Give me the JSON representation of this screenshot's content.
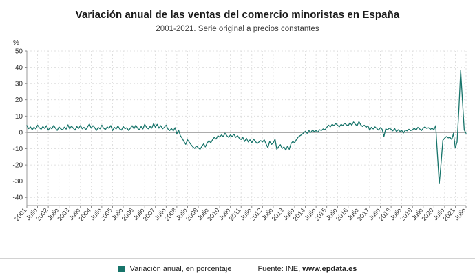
{
  "header": {
    "title": "Variación anual de las ventas del comercio minoristas en España",
    "subtitle": "2001-2021. Serie original a precios constantes"
  },
  "legend": {
    "label": "Variación anual, en porcentaje",
    "source_prefix": "Fuente: INE,",
    "source_site": "www.epdata.es"
  },
  "chart_data": {
    "type": "line",
    "title": "Variación anual de las ventas del comercio minoristas en España",
    "subtitle": "2001-2021. Serie original a precios constantes",
    "ylabel": "%",
    "xlabel": "",
    "ylim": [
      -45,
      50
    ],
    "yticks": [
      50,
      40,
      30,
      20,
      10,
      0,
      -10,
      -20,
      -30,
      -40
    ],
    "grid": true,
    "legend_position": "bottom",
    "line_color": "#17746a",
    "series_name": "Variación anual, en porcentaje",
    "x_start": "2001-01",
    "x_end": "2021-07",
    "xtick_labels": [
      "2001",
      "Julio",
      "2002",
      "Julio",
      "2003",
      "Julio",
      "2004",
      "Julio",
      "2005",
      "Julio",
      "2006",
      "Julio",
      "2007",
      "Julio",
      "2008",
      "Julio",
      "2009",
      "Julio",
      "2010",
      "Julio",
      "2011",
      "Julio",
      "2012",
      "Julio",
      "2013",
      "Julio",
      "2014",
      "Julio",
      "2015",
      "Julio",
      "2016",
      "Julio",
      "2017",
      "Julio",
      "2018",
      "Julio",
      "2019",
      "Julio",
      "2020",
      "Julio",
      "2021",
      "Julio"
    ],
    "values": [
      4.2,
      2.3,
      3.4,
      1.6,
      3.2,
      2.1,
      4.4,
      2.8,
      1.9,
      3.6,
      2.4,
      4.1,
      1.4,
      3.1,
      2.2,
      4.2,
      2.6,
      1.2,
      3.4,
      2.1,
      1.6,
      3.2,
      2.0,
      4.6,
      2.1,
      3.9,
      2.6,
      1.4,
      3.6,
      2.4,
      4.2,
      2.2,
      3.1,
      1.7,
      3.4,
      5.1,
      2.6,
      4.1,
      2.9,
      1.2,
      3.1,
      2.2,
      4.4,
      2.6,
      1.7,
      3.4,
      2.4,
      4.2,
      1.1,
      3.1,
      2.1,
      3.9,
      2.1,
      1.4,
      3.6,
      2.2,
      2.9,
      1.2,
      2.6,
      4.1,
      2.2,
      4.4,
      2.6,
      1.6,
      3.6,
      2.1,
      4.9,
      3.1,
      2.2,
      3.6,
      2.6,
      5.4,
      3.1,
      4.9,
      2.6,
      4.1,
      2.2,
      3.1,
      4.4,
      2.1,
      1.1,
      2.4,
      0.9,
      2.9,
      -0.9,
      1.4,
      -2.1,
      -3.6,
      -5.6,
      -7.4,
      -4.6,
      -6.1,
      -7.6,
      -8.9,
      -9.9,
      -8.4,
      -9.4,
      -10.4,
      -8.6,
      -7.1,
      -8.9,
      -6.6,
      -5.1,
      -6.4,
      -4.6,
      -3.1,
      -4.1,
      -2.1,
      -2.9,
      -1.6,
      -2.6,
      -0.6,
      -2.1,
      -3.1,
      -1.6,
      -2.6,
      -1.1,
      -3.1,
      -2.1,
      -3.6,
      -4.4,
      -3.1,
      -5.6,
      -3.6,
      -5.9,
      -4.6,
      -6.4,
      -4.1,
      -5.6,
      -6.9,
      -5.9,
      -5.1,
      -5.9,
      -4.6,
      -7.1,
      -9.4,
      -5.6,
      -7.4,
      -6.6,
      -4.1,
      -10.4,
      -8.9,
      -7.6,
      -9.9,
      -8.9,
      -10.9,
      -8.4,
      -10.4,
      -6.9,
      -5.6,
      -6.4,
      -4.4,
      -2.9,
      -2.1,
      -1.4,
      -0.4,
      0.6,
      -0.6,
      1.1,
      -0.1,
      1.4,
      0.4,
      1.1,
      0.1,
      1.6,
      1.1,
      2.1,
      1.6,
      3.1,
      4.4,
      3.4,
      4.9,
      4.1,
      5.4,
      4.4,
      3.4,
      4.9,
      4.1,
      5.6,
      4.6,
      4.1,
      5.9,
      4.4,
      6.4,
      4.9,
      4.1,
      6.6,
      4.6,
      3.6,
      4.4,
      3.1,
      4.1,
      1.4,
      3.1,
      2.1,
      3.4,
      2.4,
      1.4,
      2.9,
      1.9,
      -2.6,
      2.1,
      1.6,
      2.6,
      1.9,
      0.9,
      2.4,
      0.4,
      1.6,
      0.6,
      1.1,
      -0.4,
      1.4,
      0.9,
      1.9,
      1.1,
      1.6,
      2.6,
      1.4,
      3.1,
      2.1,
      1.1,
      2.6,
      3.4,
      2.4,
      2.9,
      1.9,
      2.6,
      1.6,
      4.1,
      -14.1,
      -31.6,
      -19.1,
      -4.9,
      -3.6,
      -2.6,
      -3.4,
      -3.1,
      -4.4,
      -0.6,
      -9.6,
      -5.9,
      14.1,
      38.1,
      19.4,
      1.4,
      -0.6
    ]
  }
}
